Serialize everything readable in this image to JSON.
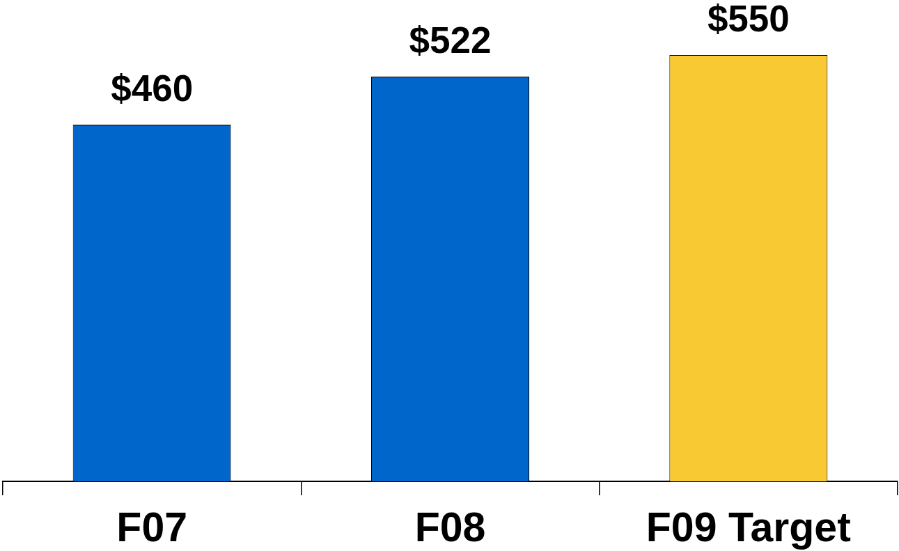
{
  "chart_data": {
    "type": "bar",
    "categories": [
      "F07",
      "F08",
      "F09 Target"
    ],
    "values": [
      460,
      522,
      550
    ],
    "colors": [
      "#0066cc",
      "#0066cc",
      "#f8c932"
    ],
    "value_labels": [
      "$460",
      "$522",
      "$550"
    ],
    "ylim": [
      0,
      620
    ]
  }
}
